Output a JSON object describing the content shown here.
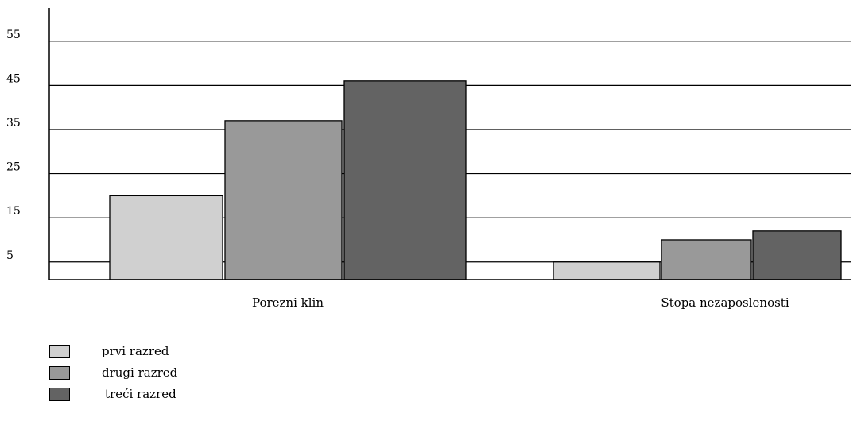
{
  "chart_data": {
    "type": "bar",
    "title": "",
    "xlabel": "",
    "ylabel": "",
    "categories": [
      "Porezni klin",
      "Stopa nezaposlenosti"
    ],
    "series": [
      {
        "name": "prvi razred",
        "values": [
          20,
          5
        ],
        "color": "#d0d0d0"
      },
      {
        "name": "drugi razred",
        "values": [
          37,
          10
        ],
        "color": "#999999"
      },
      {
        "name": "treći razred",
        "values": [
          46,
          12
        ],
        "color": "#636363"
      }
    ],
    "yticks": [
      "55",
      "45",
      "35",
      "25",
      "15",
      "5"
    ],
    "ytick_values": [
      55,
      45,
      35,
      25,
      15,
      5
    ],
    "ylim": [
      1,
      60
    ],
    "grid": true,
    "legend_placement": "bottom-left"
  }
}
